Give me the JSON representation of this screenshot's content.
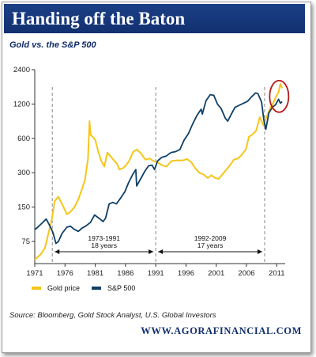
{
  "header": {
    "title": "Handing off the Baton"
  },
  "chart_data": {
    "type": "line",
    "title": "Gold vs. the S&P 500",
    "y_scale": "log",
    "y_ticks": [
      75,
      150,
      300,
      600,
      1200,
      2400
    ],
    "x_ticks": [
      1971,
      1976,
      1981,
      1986,
      1991,
      1996,
      2001,
      2006,
      2011
    ],
    "xlim": [
      1971,
      2012.4
    ],
    "ylim": [
      48,
      2400
    ],
    "grid": false,
    "legend": "bottom-left",
    "series": [
      {
        "name": "Gold price",
        "color": "#f6c51a",
        "points": [
          [
            1971.0,
            52
          ],
          [
            1972.0,
            58
          ],
          [
            1972.7,
            66
          ],
          [
            1973.3,
            90
          ],
          [
            1973.8,
            115
          ],
          [
            1974.3,
            170
          ],
          [
            1974.9,
            185
          ],
          [
            1975.5,
            160
          ],
          [
            1976.3,
            130
          ],
          [
            1976.8,
            135
          ],
          [
            1977.5,
            148
          ],
          [
            1978.2,
            175
          ],
          [
            1978.8,
            215
          ],
          [
            1979.3,
            260
          ],
          [
            1979.8,
            400
          ],
          [
            1980.05,
            850
          ],
          [
            1980.25,
            640
          ],
          [
            1980.6,
            620
          ],
          [
            1981.0,
            580
          ],
          [
            1981.5,
            460
          ],
          [
            1982.0,
            380
          ],
          [
            1982.5,
            340
          ],
          [
            1983.0,
            450
          ],
          [
            1983.5,
            420
          ],
          [
            1984.0,
            390
          ],
          [
            1984.6,
            360
          ],
          [
            1985.0,
            320
          ],
          [
            1985.6,
            330
          ],
          [
            1986.0,
            345
          ],
          [
            1986.6,
            380
          ],
          [
            1987.3,
            460
          ],
          [
            1987.9,
            480
          ],
          [
            1988.6,
            440
          ],
          [
            1989.3,
            390
          ],
          [
            1990.0,
            400
          ],
          [
            1990.6,
            380
          ],
          [
            1991.3,
            370
          ],
          [
            1992.0,
            350
          ],
          [
            1992.8,
            340
          ],
          [
            1993.6,
            380
          ],
          [
            1994.5,
            385
          ],
          [
            1995.5,
            385
          ],
          [
            1996.2,
            395
          ],
          [
            1996.9,
            370
          ],
          [
            1997.5,
            330
          ],
          [
            1998.2,
            300
          ],
          [
            1998.9,
            290
          ],
          [
            1999.6,
            270
          ],
          [
            2000.2,
            285
          ],
          [
            2000.8,
            270
          ],
          [
            2001.4,
            265
          ],
          [
            2002.0,
            290
          ],
          [
            2002.7,
            320
          ],
          [
            2003.3,
            350
          ],
          [
            2003.9,
            390
          ],
          [
            2004.6,
            400
          ],
          [
            2005.2,
            430
          ],
          [
            2005.9,
            480
          ],
          [
            2006.4,
            620
          ],
          [
            2007.0,
            650
          ],
          [
            2007.6,
            700
          ],
          [
            2008.2,
            920
          ],
          [
            2008.8,
            780
          ],
          [
            2009.3,
            920
          ],
          [
            2009.9,
            1100
          ],
          [
            2010.4,
            1220
          ],
          [
            2010.9,
            1400
          ],
          [
            2011.3,
            1520
          ],
          [
            2011.6,
            1800
          ],
          [
            2011.9,
            1650
          ]
        ]
      },
      {
        "name": "S&P 500",
        "color": "#0e3f66",
        "points": [
          [
            1971.0,
            95
          ],
          [
            1971.5,
            100
          ],
          [
            1972.3,
            110
          ],
          [
            1972.9,
            118
          ],
          [
            1973.4,
            105
          ],
          [
            1974.0,
            90
          ],
          [
            1974.5,
            72
          ],
          [
            1974.9,
            75
          ],
          [
            1975.5,
            88
          ],
          [
            1976.3,
            100
          ],
          [
            1976.9,
            102
          ],
          [
            1977.5,
            96
          ],
          [
            1978.2,
            92
          ],
          [
            1978.8,
            98
          ],
          [
            1979.5,
            103
          ],
          [
            1980.2,
            110
          ],
          [
            1980.9,
            128
          ],
          [
            1981.6,
            120
          ],
          [
            1982.3,
            112
          ],
          [
            1982.7,
            120
          ],
          [
            1983.3,
            160
          ],
          [
            1983.9,
            165
          ],
          [
            1984.5,
            160
          ],
          [
            1985.2,
            180
          ],
          [
            1985.9,
            205
          ],
          [
            1986.5,
            245
          ],
          [
            1987.2,
            290
          ],
          [
            1987.7,
            320
          ],
          [
            1987.85,
            230
          ],
          [
            1988.5,
            265
          ],
          [
            1989.2,
            310
          ],
          [
            1989.8,
            345
          ],
          [
            1990.4,
            350
          ],
          [
            1990.8,
            320
          ],
          [
            1991.3,
            380
          ],
          [
            1992.0,
            410
          ],
          [
            1992.7,
            420
          ],
          [
            1993.5,
            450
          ],
          [
            1994.3,
            460
          ],
          [
            1995.0,
            480
          ],
          [
            1995.7,
            580
          ],
          [
            1996.4,
            660
          ],
          [
            1997.1,
            800
          ],
          [
            1997.8,
            950
          ],
          [
            1998.5,
            1080
          ],
          [
            1998.7,
            980
          ],
          [
            1999.3,
            1280
          ],
          [
            2000.0,
            1450
          ],
          [
            2000.6,
            1430
          ],
          [
            2001.2,
            1200
          ],
          [
            2001.8,
            1100
          ],
          [
            2002.5,
            900
          ],
          [
            2002.9,
            850
          ],
          [
            2003.5,
            980
          ],
          [
            2004.1,
            1120
          ],
          [
            2004.8,
            1170
          ],
          [
            2005.5,
            1220
          ],
          [
            2006.2,
            1270
          ],
          [
            2006.8,
            1380
          ],
          [
            2007.5,
            1500
          ],
          [
            2007.9,
            1480
          ],
          [
            2008.5,
            1250
          ],
          [
            2008.9,
            850
          ],
          [
            2009.2,
            720
          ],
          [
            2009.7,
            1000
          ],
          [
            2010.3,
            1130
          ],
          [
            2010.8,
            1180
          ],
          [
            2011.3,
            1320
          ],
          [
            2011.6,
            1220
          ],
          [
            2011.9,
            1260
          ]
        ]
      }
    ],
    "annotations": [
      {
        "label": "1973-1991",
        "sublabel": "18 years",
        "from": 1973.9,
        "to": 1991.0
      },
      {
        "label": "1992-2009",
        "sublabel": "17 years",
        "from": 1991.0,
        "to": 2009.0
      }
    ],
    "dashed_lines_x": [
      1973.9,
      1991.0,
      2009.0
    ],
    "highlight_circle": {
      "x": 2011.4,
      "y": 1400,
      "color": "#b51a1a"
    }
  },
  "source": "Source: Bloomberg, Gold Stock Analyst, U.S. Global Investors",
  "footer": "WWW.AGORAFINANCIAL.COM"
}
